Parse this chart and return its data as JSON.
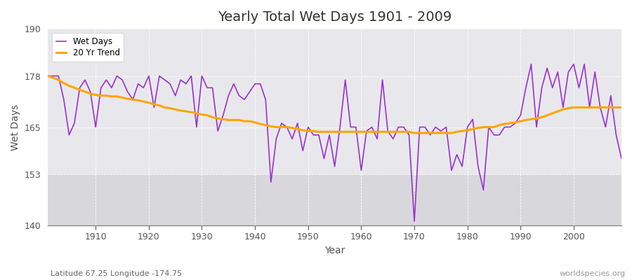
{
  "title": "Yearly Total Wet Days 1901 - 2009",
  "xlabel": "Year",
  "ylabel": "Wet Days",
  "subtitle": "Latitude 67.25 Longitude -174.75",
  "watermark": "worldspecies.org",
  "ylim": [
    140,
    190
  ],
  "yticks": [
    140,
    153,
    165,
    178,
    190
  ],
  "line_color": "#9B30D0",
  "trend_color": "#FFA500",
  "bg_color": "#FFFFFF",
  "plot_bg": "#E8E8EC",
  "plot_bg_lower": "#D8D8DC",
  "years": [
    1901,
    1902,
    1903,
    1904,
    1905,
    1906,
    1907,
    1908,
    1909,
    1910,
    1911,
    1912,
    1913,
    1914,
    1915,
    1916,
    1917,
    1918,
    1919,
    1920,
    1921,
    1922,
    1923,
    1924,
    1925,
    1926,
    1927,
    1928,
    1929,
    1930,
    1931,
    1932,
    1933,
    1934,
    1935,
    1936,
    1937,
    1938,
    1939,
    1940,
    1941,
    1942,
    1943,
    1944,
    1945,
    1946,
    1947,
    1948,
    1949,
    1950,
    1951,
    1952,
    1953,
    1954,
    1955,
    1956,
    1957,
    1958,
    1959,
    1960,
    1961,
    1962,
    1963,
    1964,
    1965,
    1966,
    1967,
    1968,
    1969,
    1970,
    1971,
    1972,
    1973,
    1974,
    1975,
    1976,
    1977,
    1978,
    1979,
    1980,
    1981,
    1982,
    1983,
    1984,
    1985,
    1986,
    1987,
    1988,
    1989,
    1990,
    1991,
    1992,
    1993,
    1994,
    1995,
    1996,
    1997,
    1998,
    1999,
    2000,
    2001,
    2002,
    2003,
    2004,
    2005,
    2006,
    2007,
    2008,
    2009
  ],
  "wet_days": [
    178,
    178,
    178,
    172,
    163,
    166,
    175,
    177,
    174,
    165,
    175,
    177,
    175,
    178,
    177,
    174,
    172,
    176,
    175,
    178,
    170,
    178,
    177,
    176,
    173,
    177,
    176,
    178,
    165,
    178,
    175,
    175,
    164,
    168,
    173,
    176,
    173,
    172,
    174,
    176,
    176,
    172,
    151,
    162,
    166,
    165,
    162,
    166,
    159,
    165,
    163,
    163,
    157,
    163,
    155,
    165,
    177,
    165,
    165,
    154,
    164,
    165,
    162,
    177,
    164,
    162,
    165,
    165,
    163,
    141,
    165,
    165,
    163,
    165,
    164,
    165,
    154,
    158,
    155,
    165,
    167,
    155,
    149,
    165,
    163,
    163,
    165,
    165,
    166,
    168,
    175,
    181,
    165,
    175,
    180,
    175,
    179,
    170,
    179,
    181,
    175,
    181,
    170,
    179,
    170,
    165,
    173,
    163,
    157
  ],
  "trend": [
    178.0,
    177.5,
    177.0,
    176.2,
    175.5,
    175.0,
    174.5,
    174.0,
    173.5,
    173.2,
    173.0,
    173.0,
    172.8,
    172.8,
    172.5,
    172.2,
    172.0,
    171.8,
    171.5,
    171.2,
    170.8,
    170.5,
    170.0,
    169.8,
    169.5,
    169.2,
    169.0,
    168.8,
    168.5,
    168.2,
    168.0,
    167.5,
    167.2,
    167.0,
    166.8,
    166.8,
    166.8,
    166.5,
    166.5,
    166.2,
    165.8,
    165.5,
    165.2,
    165.0,
    165.0,
    165.0,
    164.8,
    164.5,
    164.2,
    164.0,
    164.0,
    163.8,
    163.8,
    163.8,
    163.8,
    163.8,
    163.8,
    163.8,
    163.8,
    163.8,
    163.8,
    163.8,
    163.8,
    163.8,
    163.8,
    163.8,
    163.8,
    163.8,
    163.8,
    163.5,
    163.5,
    163.5,
    163.5,
    163.5,
    163.5,
    163.5,
    163.5,
    163.8,
    164.0,
    164.2,
    164.5,
    164.8,
    165.0,
    165.0,
    165.0,
    165.5,
    165.8,
    166.0,
    166.2,
    166.5,
    166.8,
    167.0,
    167.2,
    167.5,
    168.0,
    168.5,
    169.0,
    169.5,
    169.8,
    170.0,
    170.0,
    170.0,
    170.0,
    170.0,
    170.0,
    170.0,
    170.0,
    170.0,
    170.0
  ]
}
